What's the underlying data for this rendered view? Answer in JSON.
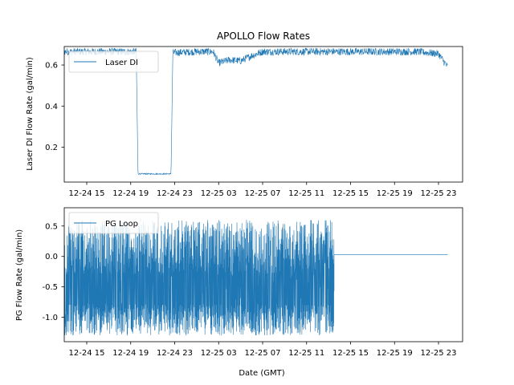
{
  "chart_data": [
    {
      "type": "line",
      "title": "APOLLO Flow Rates",
      "xlabel": "",
      "ylabel": "Laser DI Flow Rate (gal/min)",
      "x_ticks": [
        "12-24 15",
        "12-24 19",
        "12-24 23",
        "12-25 03",
        "12-25 07",
        "12-25 11",
        "12-25 15",
        "12-25 19",
        "12-25 23"
      ],
      "y_ticks": [
        "0.2",
        "0.4",
        "0.6"
      ],
      "ylim": [
        0.03,
        0.69
      ],
      "legend": "upper-left",
      "series": [
        {
          "name": "Laser DI",
          "color": "#1f77b4",
          "points": [
            [
              "12-24 11:45",
              0.665
            ],
            [
              "12-24 13:00",
              0.665
            ],
            [
              "12-24 15:00",
              0.665
            ],
            [
              "12-24 17:00",
              0.665
            ],
            [
              "12-24 19:30",
              0.665
            ],
            [
              "12-24 19:40",
              0.07
            ],
            [
              "12-24 22:40",
              0.07
            ],
            [
              "12-24 22:50",
              0.66
            ],
            [
              "12-25 01:00",
              0.665
            ],
            [
              "12-25 02:30",
              0.665
            ],
            [
              "12-25 03:00",
              0.61
            ],
            [
              "12-25 04:00",
              0.625
            ],
            [
              "12-25 05:00",
              0.62
            ],
            [
              "12-25 06:00",
              0.645
            ],
            [
              "12-25 07:00",
              0.665
            ],
            [
              "12-25 09:00",
              0.665
            ],
            [
              "12-25 11:00",
              0.665
            ],
            [
              "12-25 13:00",
              0.665
            ],
            [
              "12-25 15:00",
              0.665
            ],
            [
              "12-25 17:00",
              0.665
            ],
            [
              "12-25 19:00",
              0.665
            ],
            [
              "12-25 21:00",
              0.665
            ],
            [
              "12-25 23:00",
              0.655
            ],
            [
              "12-25 23:50",
              0.59
            ]
          ]
        }
      ]
    },
    {
      "type": "line",
      "title": "",
      "xlabel": "Date (GMT)",
      "ylabel": "PG Flow Rate (gal/min)",
      "x_ticks": [
        "12-24 15",
        "12-24 19",
        "12-24 23",
        "12-25 03",
        "12-25 07",
        "12-25 11",
        "12-25 15",
        "12-25 19",
        "12-25 23"
      ],
      "y_ticks": [
        "-1.0",
        "-0.5",
        "0.0",
        "0.5"
      ],
      "ylim": [
        -1.4,
        0.8
      ],
      "legend": "upper-left",
      "series": [
        {
          "name": "PG Loop",
          "color": "#1f77b4",
          "oscillation_start": "12-24 11:45",
          "oscillation_end": "12-25 13:30",
          "oscillation_range": [
            -1.3,
            0.6
          ],
          "steady_value": 0.03,
          "steady_end": "12-25 23:50"
        }
      ]
    }
  ]
}
